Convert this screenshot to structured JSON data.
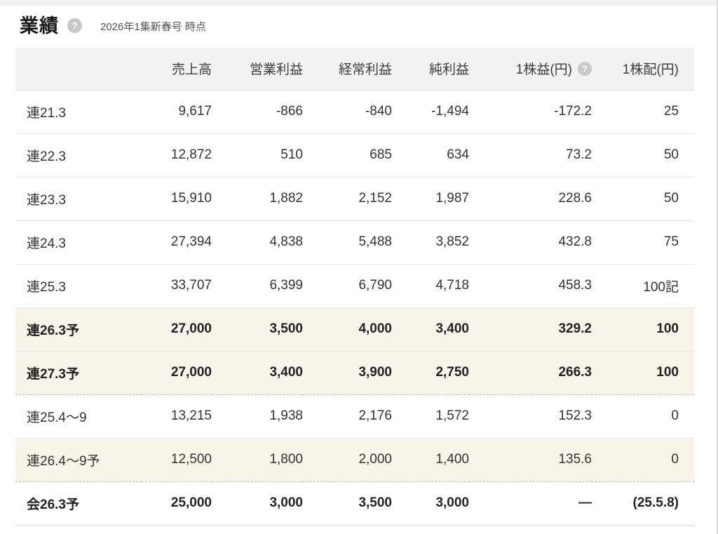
{
  "page": {
    "title": "業績",
    "subtitle": "2026年1集新春号 時点",
    "help_glyph": "?"
  },
  "colors": {
    "highlight_row_bg": "#f9f4e9",
    "header_bg": "#f2f2f2",
    "help_icon_bg": "#c9c9c9",
    "border": "#e8e8e8"
  },
  "table": {
    "columns": [
      "",
      "売上高",
      "営業利益",
      "経常利益",
      "純利益",
      "1株益(円)",
      "1株配(円)"
    ],
    "rows": [
      {
        "label": "連21.3",
        "values": [
          "9,617",
          "-866",
          "-840",
          "-1,494",
          "-172.2",
          "25"
        ],
        "highlight": false,
        "bold": false,
        "divider": "solid"
      },
      {
        "label": "連22.3",
        "values": [
          "12,872",
          "510",
          "685",
          "634",
          "73.2",
          "50"
        ],
        "highlight": false,
        "bold": false,
        "divider": "solid"
      },
      {
        "label": "連23.3",
        "values": [
          "15,910",
          "1,882",
          "2,152",
          "1,987",
          "228.6",
          "50"
        ],
        "highlight": false,
        "bold": false,
        "divider": "solid"
      },
      {
        "label": "連24.3",
        "values": [
          "27,394",
          "4,838",
          "5,488",
          "3,852",
          "432.8",
          "75"
        ],
        "highlight": false,
        "bold": false,
        "divider": "solid"
      },
      {
        "label": "連25.3",
        "values": [
          "33,707",
          "6,399",
          "6,790",
          "4,718",
          "458.3",
          "100記"
        ],
        "highlight": false,
        "bold": false,
        "divider": "solid"
      },
      {
        "label": "連26.3予",
        "values": [
          "27,000",
          "3,500",
          "4,000",
          "3,400",
          "329.2",
          "100"
        ],
        "highlight": true,
        "bold": true,
        "divider": "solid"
      },
      {
        "label": "連27.3予",
        "values": [
          "27,000",
          "3,400",
          "3,900",
          "2,750",
          "266.3",
          "100"
        ],
        "highlight": true,
        "bold": true,
        "divider": "dashed"
      },
      {
        "label": "連25.4〜9",
        "values": [
          "13,215",
          "1,938",
          "2,176",
          "1,572",
          "152.3",
          "0"
        ],
        "highlight": false,
        "bold": false,
        "divider": "solid"
      },
      {
        "label": "連26.4〜9予",
        "values": [
          "12,500",
          "1,800",
          "2,000",
          "1,400",
          "135.6",
          "0"
        ],
        "highlight": true,
        "bold": false,
        "divider": "dashed"
      },
      {
        "label": "会26.3予",
        "values": [
          "25,000",
          "3,000",
          "3,500",
          "3,000",
          "—",
          "(25.5.8)"
        ],
        "highlight": false,
        "bold": true,
        "divider": "last"
      }
    ]
  }
}
